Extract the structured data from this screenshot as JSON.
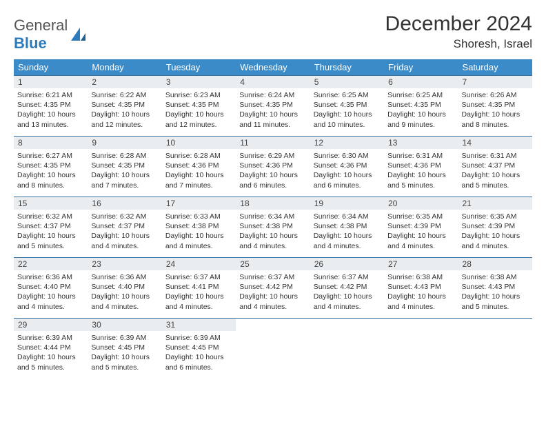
{
  "logo": {
    "text1": "General",
    "text2": "Blue"
  },
  "title": "December 2024",
  "location": "Shoresh, Israel",
  "header_bg": "#3b8bc9",
  "header_fg": "#ffffff",
  "daynum_bg": "#e9edf0",
  "rule_color": "#3b6f9e",
  "text_color": "#333333",
  "weekdays": [
    "Sunday",
    "Monday",
    "Tuesday",
    "Wednesday",
    "Thursday",
    "Friday",
    "Saturday"
  ],
  "weeks": [
    [
      {
        "n": "1",
        "sr": "Sunrise: 6:21 AM",
        "ss": "Sunset: 4:35 PM",
        "d1": "Daylight: 10 hours",
        "d2": "and 13 minutes."
      },
      {
        "n": "2",
        "sr": "Sunrise: 6:22 AM",
        "ss": "Sunset: 4:35 PM",
        "d1": "Daylight: 10 hours",
        "d2": "and 12 minutes."
      },
      {
        "n": "3",
        "sr": "Sunrise: 6:23 AM",
        "ss": "Sunset: 4:35 PM",
        "d1": "Daylight: 10 hours",
        "d2": "and 12 minutes."
      },
      {
        "n": "4",
        "sr": "Sunrise: 6:24 AM",
        "ss": "Sunset: 4:35 PM",
        "d1": "Daylight: 10 hours",
        "d2": "and 11 minutes."
      },
      {
        "n": "5",
        "sr": "Sunrise: 6:25 AM",
        "ss": "Sunset: 4:35 PM",
        "d1": "Daylight: 10 hours",
        "d2": "and 10 minutes."
      },
      {
        "n": "6",
        "sr": "Sunrise: 6:25 AM",
        "ss": "Sunset: 4:35 PM",
        "d1": "Daylight: 10 hours",
        "d2": "and 9 minutes."
      },
      {
        "n": "7",
        "sr": "Sunrise: 6:26 AM",
        "ss": "Sunset: 4:35 PM",
        "d1": "Daylight: 10 hours",
        "d2": "and 8 minutes."
      }
    ],
    [
      {
        "n": "8",
        "sr": "Sunrise: 6:27 AM",
        "ss": "Sunset: 4:35 PM",
        "d1": "Daylight: 10 hours",
        "d2": "and 8 minutes."
      },
      {
        "n": "9",
        "sr": "Sunrise: 6:28 AM",
        "ss": "Sunset: 4:35 PM",
        "d1": "Daylight: 10 hours",
        "d2": "and 7 minutes."
      },
      {
        "n": "10",
        "sr": "Sunrise: 6:28 AM",
        "ss": "Sunset: 4:36 PM",
        "d1": "Daylight: 10 hours",
        "d2": "and 7 minutes."
      },
      {
        "n": "11",
        "sr": "Sunrise: 6:29 AM",
        "ss": "Sunset: 4:36 PM",
        "d1": "Daylight: 10 hours",
        "d2": "and 6 minutes."
      },
      {
        "n": "12",
        "sr": "Sunrise: 6:30 AM",
        "ss": "Sunset: 4:36 PM",
        "d1": "Daylight: 10 hours",
        "d2": "and 6 minutes."
      },
      {
        "n": "13",
        "sr": "Sunrise: 6:31 AM",
        "ss": "Sunset: 4:36 PM",
        "d1": "Daylight: 10 hours",
        "d2": "and 5 minutes."
      },
      {
        "n": "14",
        "sr": "Sunrise: 6:31 AM",
        "ss": "Sunset: 4:37 PM",
        "d1": "Daylight: 10 hours",
        "d2": "and 5 minutes."
      }
    ],
    [
      {
        "n": "15",
        "sr": "Sunrise: 6:32 AM",
        "ss": "Sunset: 4:37 PM",
        "d1": "Daylight: 10 hours",
        "d2": "and 5 minutes."
      },
      {
        "n": "16",
        "sr": "Sunrise: 6:32 AM",
        "ss": "Sunset: 4:37 PM",
        "d1": "Daylight: 10 hours",
        "d2": "and 4 minutes."
      },
      {
        "n": "17",
        "sr": "Sunrise: 6:33 AM",
        "ss": "Sunset: 4:38 PM",
        "d1": "Daylight: 10 hours",
        "d2": "and 4 minutes."
      },
      {
        "n": "18",
        "sr": "Sunrise: 6:34 AM",
        "ss": "Sunset: 4:38 PM",
        "d1": "Daylight: 10 hours",
        "d2": "and 4 minutes."
      },
      {
        "n": "19",
        "sr": "Sunrise: 6:34 AM",
        "ss": "Sunset: 4:38 PM",
        "d1": "Daylight: 10 hours",
        "d2": "and 4 minutes."
      },
      {
        "n": "20",
        "sr": "Sunrise: 6:35 AM",
        "ss": "Sunset: 4:39 PM",
        "d1": "Daylight: 10 hours",
        "d2": "and 4 minutes."
      },
      {
        "n": "21",
        "sr": "Sunrise: 6:35 AM",
        "ss": "Sunset: 4:39 PM",
        "d1": "Daylight: 10 hours",
        "d2": "and 4 minutes."
      }
    ],
    [
      {
        "n": "22",
        "sr": "Sunrise: 6:36 AM",
        "ss": "Sunset: 4:40 PM",
        "d1": "Daylight: 10 hours",
        "d2": "and 4 minutes."
      },
      {
        "n": "23",
        "sr": "Sunrise: 6:36 AM",
        "ss": "Sunset: 4:40 PM",
        "d1": "Daylight: 10 hours",
        "d2": "and 4 minutes."
      },
      {
        "n": "24",
        "sr": "Sunrise: 6:37 AM",
        "ss": "Sunset: 4:41 PM",
        "d1": "Daylight: 10 hours",
        "d2": "and 4 minutes."
      },
      {
        "n": "25",
        "sr": "Sunrise: 6:37 AM",
        "ss": "Sunset: 4:42 PM",
        "d1": "Daylight: 10 hours",
        "d2": "and 4 minutes."
      },
      {
        "n": "26",
        "sr": "Sunrise: 6:37 AM",
        "ss": "Sunset: 4:42 PM",
        "d1": "Daylight: 10 hours",
        "d2": "and 4 minutes."
      },
      {
        "n": "27",
        "sr": "Sunrise: 6:38 AM",
        "ss": "Sunset: 4:43 PM",
        "d1": "Daylight: 10 hours",
        "d2": "and 4 minutes."
      },
      {
        "n": "28",
        "sr": "Sunrise: 6:38 AM",
        "ss": "Sunset: 4:43 PM",
        "d1": "Daylight: 10 hours",
        "d2": "and 5 minutes."
      }
    ],
    [
      {
        "n": "29",
        "sr": "Sunrise: 6:39 AM",
        "ss": "Sunset: 4:44 PM",
        "d1": "Daylight: 10 hours",
        "d2": "and 5 minutes."
      },
      {
        "n": "30",
        "sr": "Sunrise: 6:39 AM",
        "ss": "Sunset: 4:45 PM",
        "d1": "Daylight: 10 hours",
        "d2": "and 5 minutes."
      },
      {
        "n": "31",
        "sr": "Sunrise: 6:39 AM",
        "ss": "Sunset: 4:45 PM",
        "d1": "Daylight: 10 hours",
        "d2": "and 6 minutes."
      },
      {
        "empty": true
      },
      {
        "empty": true
      },
      {
        "empty": true
      },
      {
        "empty": true
      }
    ]
  ]
}
